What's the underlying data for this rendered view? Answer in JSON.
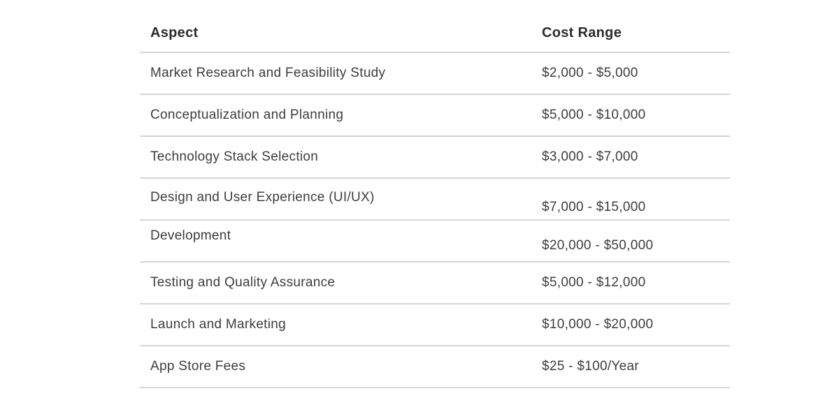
{
  "table": {
    "columns": [
      {
        "key": "aspect",
        "label": "Aspect"
      },
      {
        "key": "cost_range",
        "label": "Cost Range"
      }
    ],
    "rows": [
      {
        "aspect": "Market Research and Feasibility Study",
        "cost_range": "$2,000 - $5,000"
      },
      {
        "aspect": "Conceptualization and Planning",
        "cost_range": "$5,000 - $10,000"
      },
      {
        "aspect": "Technology Stack Selection",
        "cost_range": "$3,000 - $7,000"
      },
      {
        "aspect": "Design and User Experience (UI/UX)",
        "cost_range": "$7,000 - $15,000"
      },
      {
        "aspect": "Development",
        "cost_range": "$20,000 - $50,000"
      },
      {
        "aspect": "Testing and Quality Assurance",
        "cost_range": "$5,000 - $12,000"
      },
      {
        "aspect": "Launch and Marketing",
        "cost_range": "$10,000 - $20,000"
      },
      {
        "aspect": "App Store Fees",
        "cost_range": "$25 - $100/Year"
      }
    ]
  },
  "colors": {
    "background": "#ffffff",
    "divider": "#d6d6d6",
    "header_text": "#2b2b2b",
    "body_text": "#3d3d3d"
  }
}
